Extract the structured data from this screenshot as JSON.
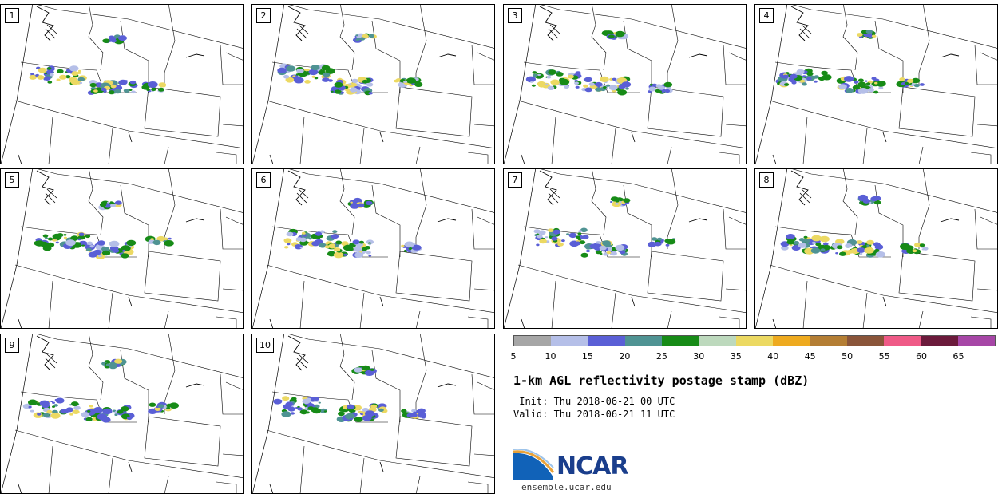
{
  "figure": {
    "title": "1-km AGL reflectivity postage stamp (dBZ)",
    "init": " Init: Thu 2018-06-21 00 UTC",
    "valid": "Valid: Thu 2018-06-21 11 UTC",
    "org": "NCAR",
    "url": "ensemble.ucar.edu"
  },
  "members": [
    {
      "label": "1"
    },
    {
      "label": "2"
    },
    {
      "label": "3"
    },
    {
      "label": "4"
    },
    {
      "label": "5"
    },
    {
      "label": "6"
    },
    {
      "label": "7"
    },
    {
      "label": "8"
    },
    {
      "label": "9"
    },
    {
      "label": "10"
    }
  ],
  "colorbar": {
    "ticks": [
      "5",
      "10",
      "15",
      "20",
      "25",
      "30",
      "35",
      "40",
      "45",
      "50",
      "55",
      "60",
      "65"
    ],
    "colors": [
      "#a6a6a6",
      "#b5bfe8",
      "#5a5fd6",
      "#4f9393",
      "#178b17",
      "#bdd9bd",
      "#ecd962",
      "#eeaa1f",
      "#b47e34",
      "#8a553a",
      "#ef5a87",
      "#6b1a3b",
      "#a646a6"
    ]
  }
}
